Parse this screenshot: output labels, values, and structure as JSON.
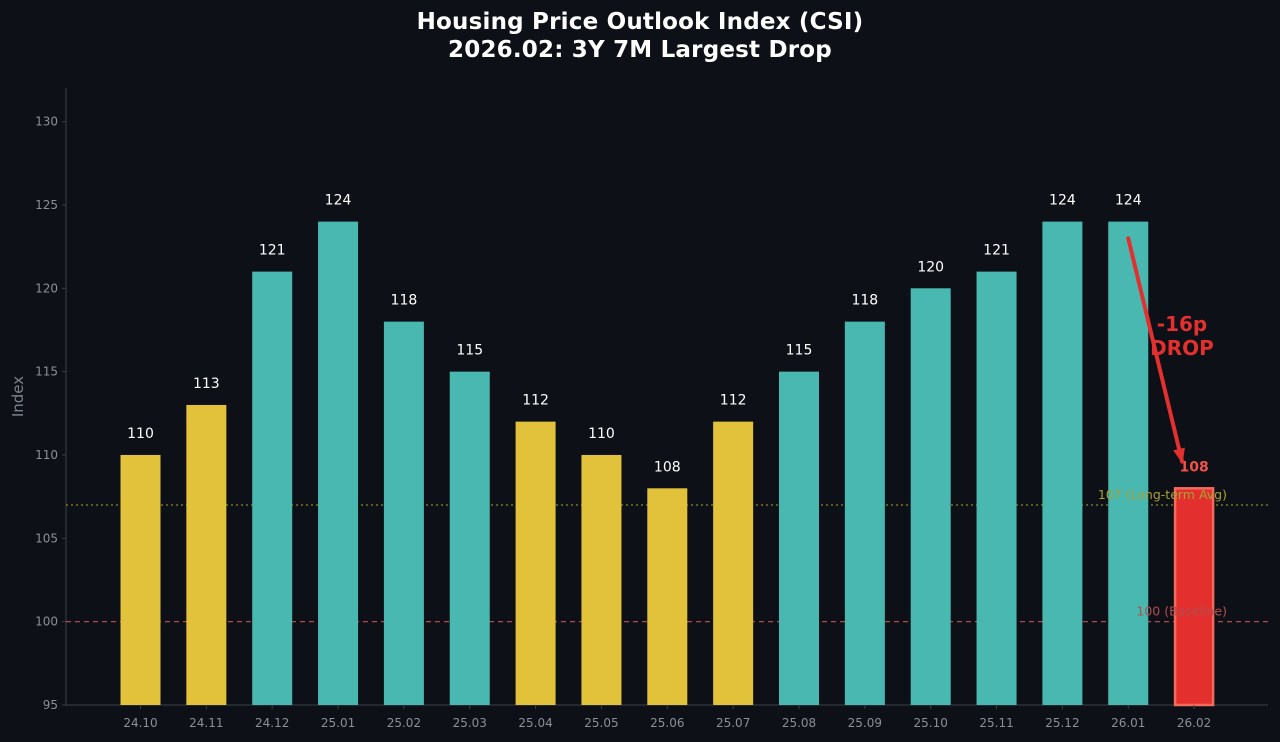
{
  "chart_data": {
    "type": "bar",
    "title": "Housing Price Outlook Index (CSI)",
    "subtitle": "2026.02: 3Y 7M Largest Drop",
    "xlabel": "",
    "ylabel": "Index",
    "ylim": [
      95,
      132
    ],
    "yticks": [
      95,
      100,
      105,
      110,
      115,
      120,
      125,
      130
    ],
    "grid": false,
    "categories": [
      "24.10",
      "24.11",
      "24.12",
      "25.01",
      "25.02",
      "25.03",
      "25.04",
      "25.05",
      "25.06",
      "25.07",
      "25.08",
      "25.09",
      "25.10",
      "25.11",
      "25.12",
      "26.01",
      "26.02"
    ],
    "values": [
      110,
      113,
      121,
      124,
      118,
      115,
      112,
      110,
      108,
      112,
      115,
      118,
      120,
      121,
      124,
      124,
      108
    ],
    "bar_groups": [
      "yellow",
      "yellow",
      "teal",
      "teal",
      "teal",
      "teal",
      "yellow",
      "yellow",
      "yellow",
      "yellow",
      "teal",
      "teal",
      "teal",
      "teal",
      "teal",
      "teal",
      "red"
    ],
    "reference_lines": [
      {
        "value": 107,
        "label": "107 (Long-term Avg)",
        "color": "#8a8a2a",
        "style": "dotted"
      },
      {
        "value": 100,
        "label": "100 (Baseline)",
        "color": "#b04a4a",
        "style": "dashed"
      }
    ],
    "annotation": {
      "line1": "-16p",
      "line2": "DROP",
      "from_value": 123,
      "from_category": "26.01",
      "to_value": 109.6,
      "to_category": "26.02"
    },
    "colors": {
      "background": "#0d1017",
      "yellow": "#e2c23a",
      "teal": "#48b8b1",
      "red": "#e3302f",
      "red_edge": "#f26b5b",
      "axis": "#3a3f47",
      "tick_text": "#8a8f98",
      "value_label": "#ffffff",
      "highlight_label": "#f0524a"
    }
  }
}
